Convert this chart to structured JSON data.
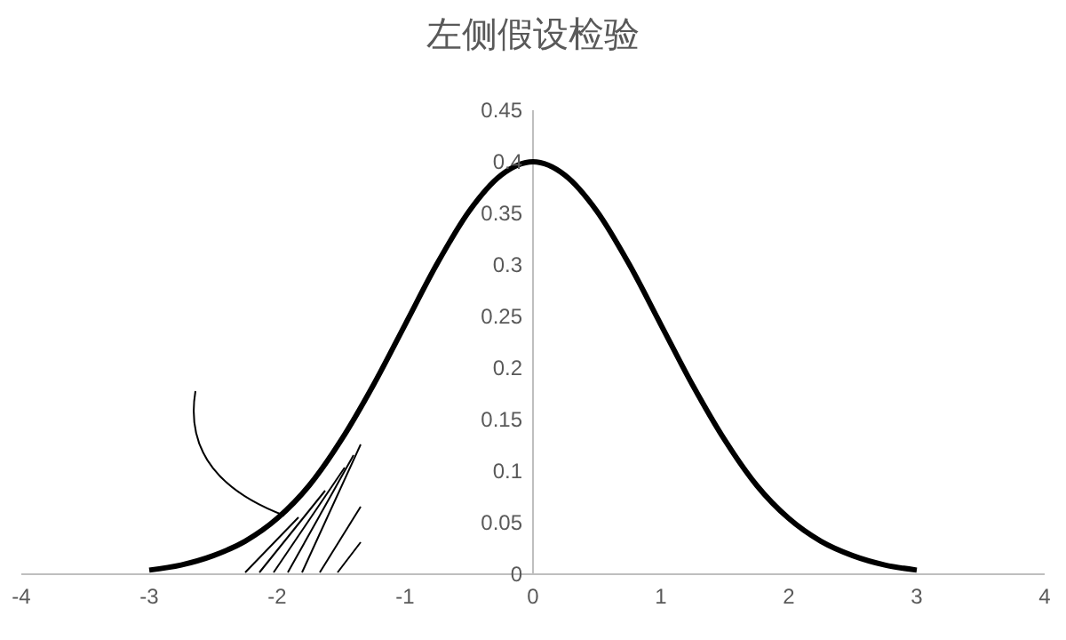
{
  "chart_data": {
    "type": "line",
    "title": "左侧假设检验",
    "x": [
      -3,
      -2.75,
      -2.5,
      -2.25,
      -2,
      -1.75,
      -1.5,
      -1.25,
      -1,
      -0.75,
      -0.5,
      -0.25,
      0,
      0.25,
      0.5,
      0.75,
      1,
      1.25,
      1.5,
      1.75,
      2,
      2.25,
      2.5,
      2.75,
      3
    ],
    "series": [
      {
        "color": "#000000",
        "values": [
          0.004,
          0.009,
          0.018,
          0.032,
          0.054,
          0.086,
          0.13,
          0.183,
          0.242,
          0.301,
          0.352,
          0.387,
          0.4,
          0.387,
          0.352,
          0.301,
          0.242,
          0.183,
          0.13,
          0.086,
          0.054,
          0.032,
          0.018,
          0.009,
          0.004
        ]
      }
    ],
    "xlim": [
      -4,
      4
    ],
    "xticks": [
      -4,
      -3,
      -2,
      -1,
      0,
      1,
      2,
      3,
      4
    ],
    "ylim": [
      0,
      0.45
    ],
    "yticks": [
      0,
      0.05,
      0.1,
      0.15,
      0.2,
      0.25,
      0.3,
      0.35,
      0.4,
      0.45
    ],
    "marker": "none",
    "line_style": "solid"
  }
}
